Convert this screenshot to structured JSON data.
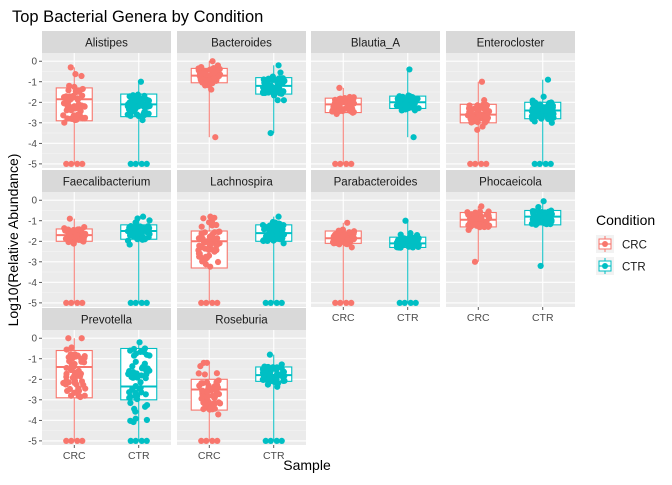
{
  "chart_data": {
    "type": "boxplot",
    "title": "Top Bacterial Genera by Condition",
    "xlabel": "Sample",
    "ylabel": "Log10(Relative Abundance)",
    "ylim": [
      -5.2,
      0.4
    ],
    "yticks": [
      "0",
      "-1",
      "-2",
      "-3",
      "-4",
      "-5"
    ],
    "categories": [
      "CRC",
      "CTR"
    ],
    "facet_layout": {
      "ncol": 4
    },
    "legend": {
      "title": "Condition",
      "position": "right",
      "items": [
        {
          "label": "CRC",
          "color": "#F8766D"
        },
        {
          "label": "CTR",
          "color": "#00BFC4"
        }
      ]
    },
    "grid": true,
    "facets": [
      {
        "name": "Alistipes",
        "CRC": {
          "q1": -2.9,
          "median": -1.85,
          "q3": -1.3,
          "whisker_low": -5.0,
          "whisker_high": -0.3,
          "ymin": -5.0,
          "ymax": -0.3
        },
        "CTR": {
          "q1": -2.7,
          "median": -2.1,
          "q3": -1.6,
          "whisker_low": -5.0,
          "whisker_high": -1.0,
          "ymin": -5.0,
          "ymax": -1.0
        }
      },
      {
        "name": "Bacteroides",
        "CRC": {
          "q1": -1.05,
          "median": -0.7,
          "q3": -0.35,
          "whisker_low": -3.7,
          "whisker_high": 0.0,
          "ymin": -3.7,
          "ymax": 0.0
        },
        "CTR": {
          "q1": -1.6,
          "median": -1.2,
          "q3": -0.8,
          "whisker_low": -3.5,
          "whisker_high": -0.2,
          "ymin": -3.5,
          "ymax": -0.2
        }
      },
      {
        "name": "Blautia_A",
        "CRC": {
          "q1": -2.5,
          "median": -2.1,
          "q3": -1.8,
          "whisker_low": -5.0,
          "whisker_high": -1.3,
          "ymin": -5.0,
          "ymax": -1.3
        },
        "CTR": {
          "q1": -2.3,
          "median": -2.0,
          "q3": -1.7,
          "whisker_low": -3.7,
          "whisker_high": -0.4,
          "ymin": -3.7,
          "ymax": -0.4
        }
      },
      {
        "name": "Enterocloster",
        "CRC": {
          "q1": -3.0,
          "median": -2.6,
          "q3": -2.1,
          "whisker_low": -5.0,
          "whisker_high": -1.0,
          "ymin": -5.0,
          "ymax": -1.0
        },
        "CTR": {
          "q1": -2.8,
          "median": -2.4,
          "q3": -2.0,
          "whisker_low": -5.0,
          "whisker_high": -0.9,
          "ymin": -5.0,
          "ymax": -0.9
        }
      },
      {
        "name": "Faecalibacterium",
        "CRC": {
          "q1": -2.0,
          "median": -1.7,
          "q3": -1.4,
          "whisker_low": -5.0,
          "whisker_high": -0.9,
          "ymin": -5.0,
          "ymax": -0.9
        },
        "CTR": {
          "q1": -1.9,
          "median": -1.5,
          "q3": -1.2,
          "whisker_low": -5.0,
          "whisker_high": -0.8,
          "ymin": -5.0,
          "ymax": -0.8
        }
      },
      {
        "name": "Lachnospira",
        "CRC": {
          "q1": -3.3,
          "median": -2.0,
          "q3": -1.5,
          "whisker_low": -5.0,
          "whisker_high": -0.8,
          "ymin": -5.0,
          "ymax": -0.8
        },
        "CTR": {
          "q1": -2.0,
          "median": -1.6,
          "q3": -1.2,
          "whisker_low": -5.0,
          "whisker_high": -0.8,
          "ymin": -5.0,
          "ymax": -0.8
        }
      },
      {
        "name": "Parabacteroides",
        "CRC": {
          "q1": -2.1,
          "median": -1.85,
          "q3": -1.5,
          "whisker_low": -5.0,
          "whisker_high": -1.1,
          "ymin": -5.0,
          "ymax": -1.1
        },
        "CTR": {
          "q1": -2.3,
          "median": -2.1,
          "q3": -1.8,
          "whisker_low": -5.0,
          "whisker_high": -1.0,
          "ymin": -5.0,
          "ymax": -1.0
        }
      },
      {
        "name": "Phocaeicola",
        "CRC": {
          "q1": -1.3,
          "median": -0.95,
          "q3": -0.6,
          "whisker_low": -3.0,
          "whisker_high": -0.3,
          "ymin": -3.0,
          "ymax": -0.3
        },
        "CTR": {
          "q1": -1.2,
          "median": -0.8,
          "q3": -0.5,
          "whisker_low": -3.2,
          "whisker_high": -0.05,
          "ymin": -3.2,
          "ymax": -0.05
        }
      },
      {
        "name": "Prevotella",
        "CRC": {
          "q1": -2.9,
          "median": -1.4,
          "q3": -0.6,
          "whisker_low": -5.0,
          "whisker_high": 0.0,
          "ymin": -5.0,
          "ymax": 0.0
        },
        "CTR": {
          "q1": -3.0,
          "median": -2.35,
          "q3": -0.5,
          "whisker_low": -5.0,
          "whisker_high": -0.2,
          "ymin": -5.0,
          "ymax": -0.2
        }
      },
      {
        "name": "Roseburia",
        "CRC": {
          "q1": -3.5,
          "median": -2.5,
          "q3": -2.0,
          "whisker_low": -5.0,
          "whisker_high": -1.2,
          "ymin": -5.0,
          "ymax": -1.2
        },
        "CTR": {
          "q1": -2.1,
          "median": -1.8,
          "q3": -1.4,
          "whisker_low": -5.0,
          "whisker_high": -0.8,
          "ymin": -5.0,
          "ymax": -0.8
        }
      }
    ]
  }
}
